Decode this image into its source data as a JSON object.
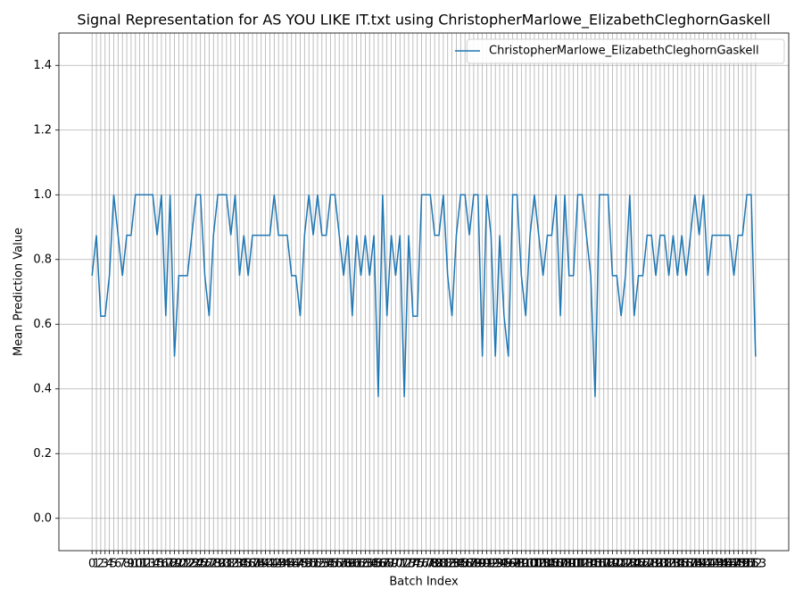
{
  "chart_data": {
    "type": "line",
    "title": "Signal Representation for AS YOU LIKE IT.txt using ChristopherMarlowe_ElizabethCleghornGaskell",
    "xlabel": "Batch Index",
    "ylabel": "Mean Prediction Value",
    "x": [
      0,
      1,
      2,
      3,
      4,
      5,
      6,
      7,
      8,
      9,
      10,
      11,
      12,
      13,
      14,
      15,
      16,
      17,
      18,
      19,
      20,
      21,
      22,
      23,
      24,
      25,
      26,
      27,
      28,
      29,
      30,
      31,
      32,
      33,
      34,
      35,
      36,
      37,
      38,
      39,
      40,
      41,
      42,
      43,
      44,
      45,
      46,
      47,
      48,
      49,
      50,
      51,
      52,
      53,
      54,
      55,
      56,
      57,
      58,
      59,
      60,
      61,
      62,
      63,
      64,
      65,
      66,
      67,
      68,
      69,
      70,
      71,
      72,
      73,
      74,
      75,
      76,
      77,
      78,
      79,
      80,
      81,
      82,
      83,
      84,
      85,
      86,
      87,
      88,
      89,
      90,
      91,
      92,
      93,
      94,
      95,
      96,
      97,
      98,
      99,
      100,
      101,
      102,
      103,
      104,
      105,
      106,
      107,
      108,
      109,
      110,
      111,
      112,
      113,
      114,
      115,
      116,
      117,
      118,
      119,
      120,
      121,
      122,
      123,
      124,
      125,
      126,
      127,
      128,
      129,
      130,
      131,
      132,
      133,
      134,
      135,
      136,
      137,
      138,
      139,
      140,
      141,
      142,
      143,
      144,
      145,
      146,
      147,
      148,
      149,
      150,
      151,
      152,
      153
    ],
    "series": [
      {
        "name": "ChristopherMarlowe_ElizabethCleghornGaskell",
        "color": "#1f77b4",
        "values": [
          0.75,
          0.875,
          0.625,
          0.625,
          0.75,
          1.0,
          0.875,
          0.75,
          0.875,
          0.875,
          1.0,
          1.0,
          1.0,
          1.0,
          1.0,
          0.875,
          1.0,
          0.625,
          1.0,
          0.5,
          0.75,
          0.75,
          0.75,
          0.875,
          1.0,
          1.0,
          0.75,
          0.625,
          0.875,
          1.0,
          1.0,
          1.0,
          0.875,
          1.0,
          0.75,
          0.875,
          0.75,
          0.875,
          0.875,
          0.875,
          0.875,
          0.875,
          1.0,
          0.875,
          0.875,
          0.875,
          0.75,
          0.75,
          0.625,
          0.875,
          1.0,
          0.875,
          1.0,
          0.875,
          0.875,
          1.0,
          1.0,
          0.875,
          0.75,
          0.875,
          0.625,
          0.875,
          0.75,
          0.875,
          0.75,
          0.875,
          0.375,
          1.0,
          0.625,
          0.875,
          0.75,
          0.875,
          0.375,
          0.875,
          0.625,
          0.625,
          1.0,
          1.0,
          1.0,
          0.875,
          0.875,
          1.0,
          0.75,
          0.625,
          0.875,
          1.0,
          1.0,
          0.875,
          1.0,
          1.0,
          0.5,
          1.0,
          0.875,
          0.5,
          0.875,
          0.625,
          0.5,
          1.0,
          1.0,
          0.75,
          0.625,
          0.875,
          1.0,
          0.875,
          0.75,
          0.875,
          0.875,
          1.0,
          0.625,
          1.0,
          0.75,
          0.75,
          1.0,
          1.0,
          0.875,
          0.75,
          0.375,
          1.0,
          1.0,
          1.0,
          0.75,
          0.75,
          0.625,
          0.75,
          1.0,
          0.625,
          0.75,
          0.75,
          0.875,
          0.875,
          0.75,
          0.875,
          0.875,
          0.75,
          0.875,
          0.75,
          0.875,
          0.75,
          0.875,
          1.0,
          0.875,
          1.0,
          0.75,
          0.875,
          0.875,
          0.875,
          0.875,
          0.875,
          0.75,
          0.875,
          0.875,
          1.0,
          1.0,
          0.5
        ]
      }
    ],
    "xlim": [
      -7.65,
      160.65
    ],
    "ylim": [
      -0.1,
      1.5
    ],
    "xticks": [
      0,
      1,
      2,
      3,
      4,
      5,
      6,
      7,
      8,
      9,
      10,
      11,
      12,
      13,
      14,
      15,
      16,
      17,
      18,
      19,
      20,
      21,
      22,
      23,
      24,
      25,
      26,
      27,
      28,
      29,
      30,
      31,
      32,
      33,
      34,
      35,
      36,
      37,
      38,
      39,
      40,
      41,
      42,
      43,
      44,
      45,
      46,
      47,
      48,
      49,
      50,
      51,
      52,
      53,
      54,
      55,
      56,
      57,
      58,
      59,
      60,
      61,
      62,
      63,
      64,
      65,
      66,
      67,
      68,
      69,
      70,
      71,
      72,
      73,
      74,
      75,
      76,
      77,
      78,
      79,
      80,
      81,
      82,
      83,
      84,
      85,
      86,
      87,
      88,
      89,
      90,
      91,
      92,
      93,
      94,
      95,
      96,
      97,
      98,
      99,
      100,
      101,
      102,
      103,
      104,
      105,
      106,
      107,
      108,
      109,
      110,
      111,
      112,
      113,
      114,
      115,
      116,
      117,
      118,
      119,
      120,
      121,
      122,
      123,
      124,
      125,
      126,
      127,
      128,
      129,
      130,
      131,
      132,
      133,
      134,
      135,
      136,
      137,
      138,
      139,
      140,
      141,
      142,
      143,
      144,
      145,
      146,
      147,
      148,
      149,
      150,
      151,
      152,
      153
    ],
    "yticks": [
      {
        "value": 0,
        "label": "0.0"
      },
      {
        "value": 0.2,
        "label": "0.2"
      },
      {
        "value": 0.4,
        "label": "0.4"
      },
      {
        "value": 0.6,
        "label": "0.6"
      },
      {
        "value": 0.8,
        "label": "0.8"
      },
      {
        "value": 1,
        "label": "1.0"
      },
      {
        "value": 1.2,
        "label": "1.2"
      },
      {
        "value": 1.4,
        "label": "1.4"
      }
    ],
    "grid": true,
    "legend": "upper right"
  }
}
